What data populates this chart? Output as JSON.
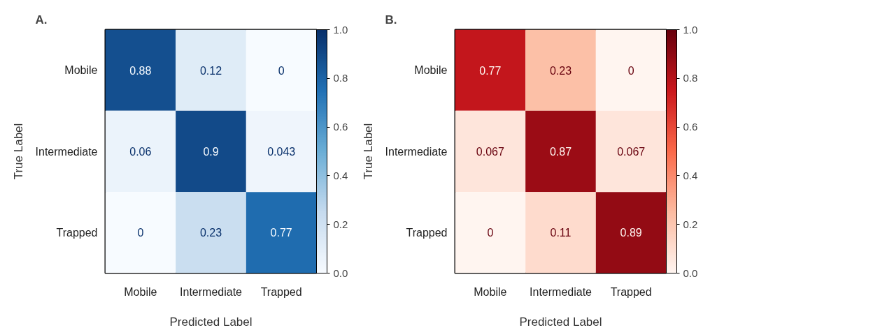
{
  "chart_data": [
    {
      "type": "heatmap",
      "title": "A.",
      "xlabel": "Predicted Label",
      "ylabel": "True Label",
      "categories": [
        "Mobile",
        "Intermediate",
        "Trapped"
      ],
      "y_categories": [
        "Mobile",
        "Intermediate",
        "Trapped"
      ],
      "cells": [
        [
          0.88,
          0.12,
          0
        ],
        [
          0.06,
          0.9,
          0.043
        ],
        [
          0,
          0.23,
          0.77
        ]
      ],
      "colors": [
        "#f7fbff",
        "#c6dbef",
        "#6baed6",
        "#2171b5",
        "#08306b"
      ],
      "data_labels": true,
      "grid": false,
      "clim": [
        0,
        1
      ],
      "cticks": [
        {
          "value": 0,
          "label": "0.0"
        },
        {
          "value": 0.2,
          "label": "0.2"
        },
        {
          "value": 0.4,
          "label": "0.4"
        },
        {
          "value": 0.6,
          "label": "0.6"
        },
        {
          "value": 0.8,
          "label": "0.8"
        },
        {
          "value": 1,
          "label": "1.0"
        }
      ]
    },
    {
      "type": "heatmap",
      "title": "B.",
      "xlabel": "Predicted Label",
      "ylabel": "True Label",
      "categories": [
        "Mobile",
        "Intermediate",
        "Trapped"
      ],
      "y_categories": [
        "Mobile",
        "Intermediate",
        "Trapped"
      ],
      "cells": [
        [
          0.77,
          0.23,
          0
        ],
        [
          0.067,
          0.87,
          0.067
        ],
        [
          0,
          0.11,
          0.89
        ]
      ],
      "colors": [
        "#fff5f0",
        "#fcbba1",
        "#fb6a4a",
        "#cb181d",
        "#67000d"
      ],
      "data_labels": true,
      "grid": false,
      "clim": [
        0,
        1
      ],
      "cticks": [
        {
          "value": 0,
          "label": "0.0"
        },
        {
          "value": 0.2,
          "label": "0.2"
        },
        {
          "value": 0.4,
          "label": "0.4"
        },
        {
          "value": 0.6,
          "label": "0.6"
        },
        {
          "value": 0.8,
          "label": "0.8"
        },
        {
          "value": 1,
          "label": "1.0"
        }
      ]
    }
  ]
}
